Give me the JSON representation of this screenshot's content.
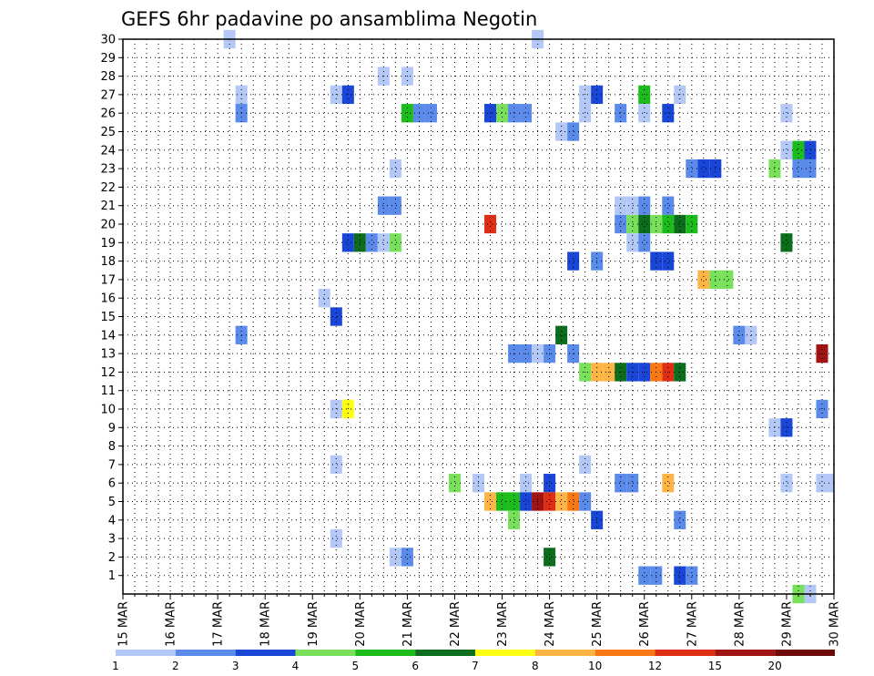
{
  "chart_data": {
    "type": "heatmap",
    "title": "GEFS 6hr padavine po ansamblima Negotin",
    "xlabel": "",
    "ylabel": "",
    "x_tick_labels": [
      "15 MAR",
      "16 MAR",
      "17 MAR",
      "18 MAR",
      "19 MAR",
      "20 MAR",
      "21 MAR",
      "22 MAR",
      "23 MAR",
      "24 MAR",
      "25 MAR",
      "26 MAR",
      "27 MAR",
      "28 MAR",
      "29 MAR",
      "30 MAR"
    ],
    "xlim": [
      0,
      15
    ],
    "y_tick_labels": [
      1,
      2,
      3,
      4,
      5,
      6,
      7,
      8,
      9,
      10,
      11,
      12,
      13,
      14,
      15,
      16,
      17,
      18,
      19,
      20,
      21,
      22,
      23,
      24,
      25,
      26,
      27,
      28,
      29,
      30
    ],
    "ylim": [
      0,
      30
    ],
    "grid": true,
    "legend": {
      "placement": "bottom",
      "labels": [
        "1",
        "2",
        "3",
        "4",
        "5",
        "6",
        "7",
        "8",
        "10",
        "12",
        "15",
        "20"
      ],
      "colors": [
        "#b4c8f8",
        "#5a8aea",
        "#1a46d8",
        "#78e05a",
        "#1cbc1c",
        "#0c6e1c",
        "#ffff14",
        "#ffb446",
        "#f87814",
        "#e02e14",
        "#a01414",
        "#6e0a0a"
      ]
    },
    "series_note_unit": "x = day offset from 15 MAR (0.25 = 6h), y = ensemble member, c = color class index 0-11",
    "cells": [
      [
        2.25,
        30,
        0
      ],
      [
        8.75,
        30,
        0
      ],
      [
        5.5,
        28,
        0
      ],
      [
        6,
        28,
        0
      ],
      [
        2.5,
        27,
        0
      ],
      [
        4.5,
        27,
        0
      ],
      [
        4.75,
        27,
        2
      ],
      [
        9.75,
        27,
        0
      ],
      [
        10,
        27,
        2
      ],
      [
        11,
        27,
        4
      ],
      [
        11.75,
        27,
        0
      ],
      [
        2.5,
        26,
        1
      ],
      [
        6,
        26,
        4
      ],
      [
        6.25,
        26,
        1
      ],
      [
        6.5,
        26,
        1
      ],
      [
        7.75,
        26,
        2
      ],
      [
        8,
        26,
        3
      ],
      [
        8.25,
        26,
        1
      ],
      [
        8.5,
        26,
        1
      ],
      [
        9.75,
        26,
        0
      ],
      [
        10.5,
        26,
        1
      ],
      [
        11,
        26,
        0
      ],
      [
        11.5,
        26,
        2
      ],
      [
        14,
        26,
        0
      ],
      [
        9.25,
        25,
        0
      ],
      [
        9.5,
        25,
        1
      ],
      [
        14,
        24,
        0
      ],
      [
        14.25,
        24,
        4
      ],
      [
        14.5,
        24,
        2
      ],
      [
        5.75,
        23,
        0
      ],
      [
        12,
        23,
        1
      ],
      [
        12.25,
        23,
        2
      ],
      [
        12.5,
        23,
        2
      ],
      [
        13.75,
        23,
        3
      ],
      [
        14.25,
        23,
        1
      ],
      [
        14.5,
        23,
        1
      ],
      [
        5.5,
        21,
        1
      ],
      [
        5.75,
        21,
        1
      ],
      [
        10.5,
        21,
        0
      ],
      [
        10.75,
        21,
        0
      ],
      [
        11,
        21,
        1
      ],
      [
        11.5,
        21,
        1
      ],
      [
        7.75,
        20,
        9
      ],
      [
        10.5,
        20,
        1
      ],
      [
        10.75,
        20,
        3
      ],
      [
        11,
        20,
        5
      ],
      [
        11.25,
        20,
        3
      ],
      [
        11.5,
        20,
        4
      ],
      [
        11.75,
        20,
        5
      ],
      [
        12,
        20,
        4
      ],
      [
        4.75,
        19,
        2
      ],
      [
        5,
        19,
        5
      ],
      [
        5.25,
        19,
        1
      ],
      [
        5.5,
        19,
        0
      ],
      [
        5.75,
        19,
        3
      ],
      [
        10.75,
        19,
        0
      ],
      [
        11,
        19,
        1
      ],
      [
        14,
        19,
        5
      ],
      [
        9.5,
        18,
        2
      ],
      [
        10,
        18,
        1
      ],
      [
        11.25,
        18,
        2
      ],
      [
        11.5,
        18,
        2
      ],
      [
        12.25,
        17,
        7
      ],
      [
        12.5,
        17,
        3
      ],
      [
        12.75,
        17,
        3
      ],
      [
        4.25,
        16,
        0
      ],
      [
        4.5,
        15,
        2
      ],
      [
        2.5,
        14,
        1
      ],
      [
        9.25,
        14,
        5
      ],
      [
        13,
        14,
        1
      ],
      [
        13.25,
        14,
        0
      ],
      [
        8.25,
        13,
        1
      ],
      [
        8.5,
        13,
        1
      ],
      [
        8.75,
        13,
        0
      ],
      [
        9,
        13,
        1
      ],
      [
        9.5,
        13,
        1
      ],
      [
        14.75,
        13,
        10
      ],
      [
        9.75,
        12,
        3
      ],
      [
        10,
        12,
        7
      ],
      [
        10.25,
        12,
        7
      ],
      [
        10.5,
        12,
        5
      ],
      [
        10.75,
        12,
        2
      ],
      [
        11,
        12,
        2
      ],
      [
        11.25,
        12,
        8
      ],
      [
        11.5,
        12,
        9
      ],
      [
        11.75,
        12,
        5
      ],
      [
        4.5,
        10,
        0
      ],
      [
        4.75,
        10,
        6
      ],
      [
        14.75,
        10,
        1
      ],
      [
        13.75,
        9,
        0
      ],
      [
        14,
        9,
        2
      ],
      [
        4.5,
        7,
        0
      ],
      [
        9.75,
        7,
        0
      ],
      [
        7,
        6,
        3
      ],
      [
        7.5,
        6,
        0
      ],
      [
        8.5,
        6,
        0
      ],
      [
        9,
        6,
        2
      ],
      [
        10.5,
        6,
        1
      ],
      [
        10.75,
        6,
        1
      ],
      [
        11.5,
        6,
        7
      ],
      [
        14,
        6,
        0
      ],
      [
        14.75,
        6,
        0
      ],
      [
        15,
        6,
        0
      ],
      [
        7.75,
        5,
        7
      ],
      [
        8,
        5,
        4
      ],
      [
        8.25,
        5,
        4
      ],
      [
        8.5,
        5,
        2
      ],
      [
        8.75,
        5,
        10
      ],
      [
        9,
        5,
        9
      ],
      [
        9.25,
        5,
        7
      ],
      [
        9.5,
        5,
        8
      ],
      [
        9.75,
        5,
        1
      ],
      [
        8.25,
        4,
        3
      ],
      [
        10,
        4,
        2
      ],
      [
        11.75,
        4,
        1
      ],
      [
        4.5,
        3,
        0
      ],
      [
        5.75,
        2,
        0
      ],
      [
        6,
        2,
        1
      ],
      [
        9,
        2,
        5
      ],
      [
        11,
        1,
        1
      ],
      [
        11.25,
        1,
        1
      ],
      [
        11.75,
        1,
        2
      ],
      [
        12,
        1,
        1
      ],
      [
        14.25,
        0,
        3
      ],
      [
        14.5,
        0,
        0
      ]
    ]
  }
}
